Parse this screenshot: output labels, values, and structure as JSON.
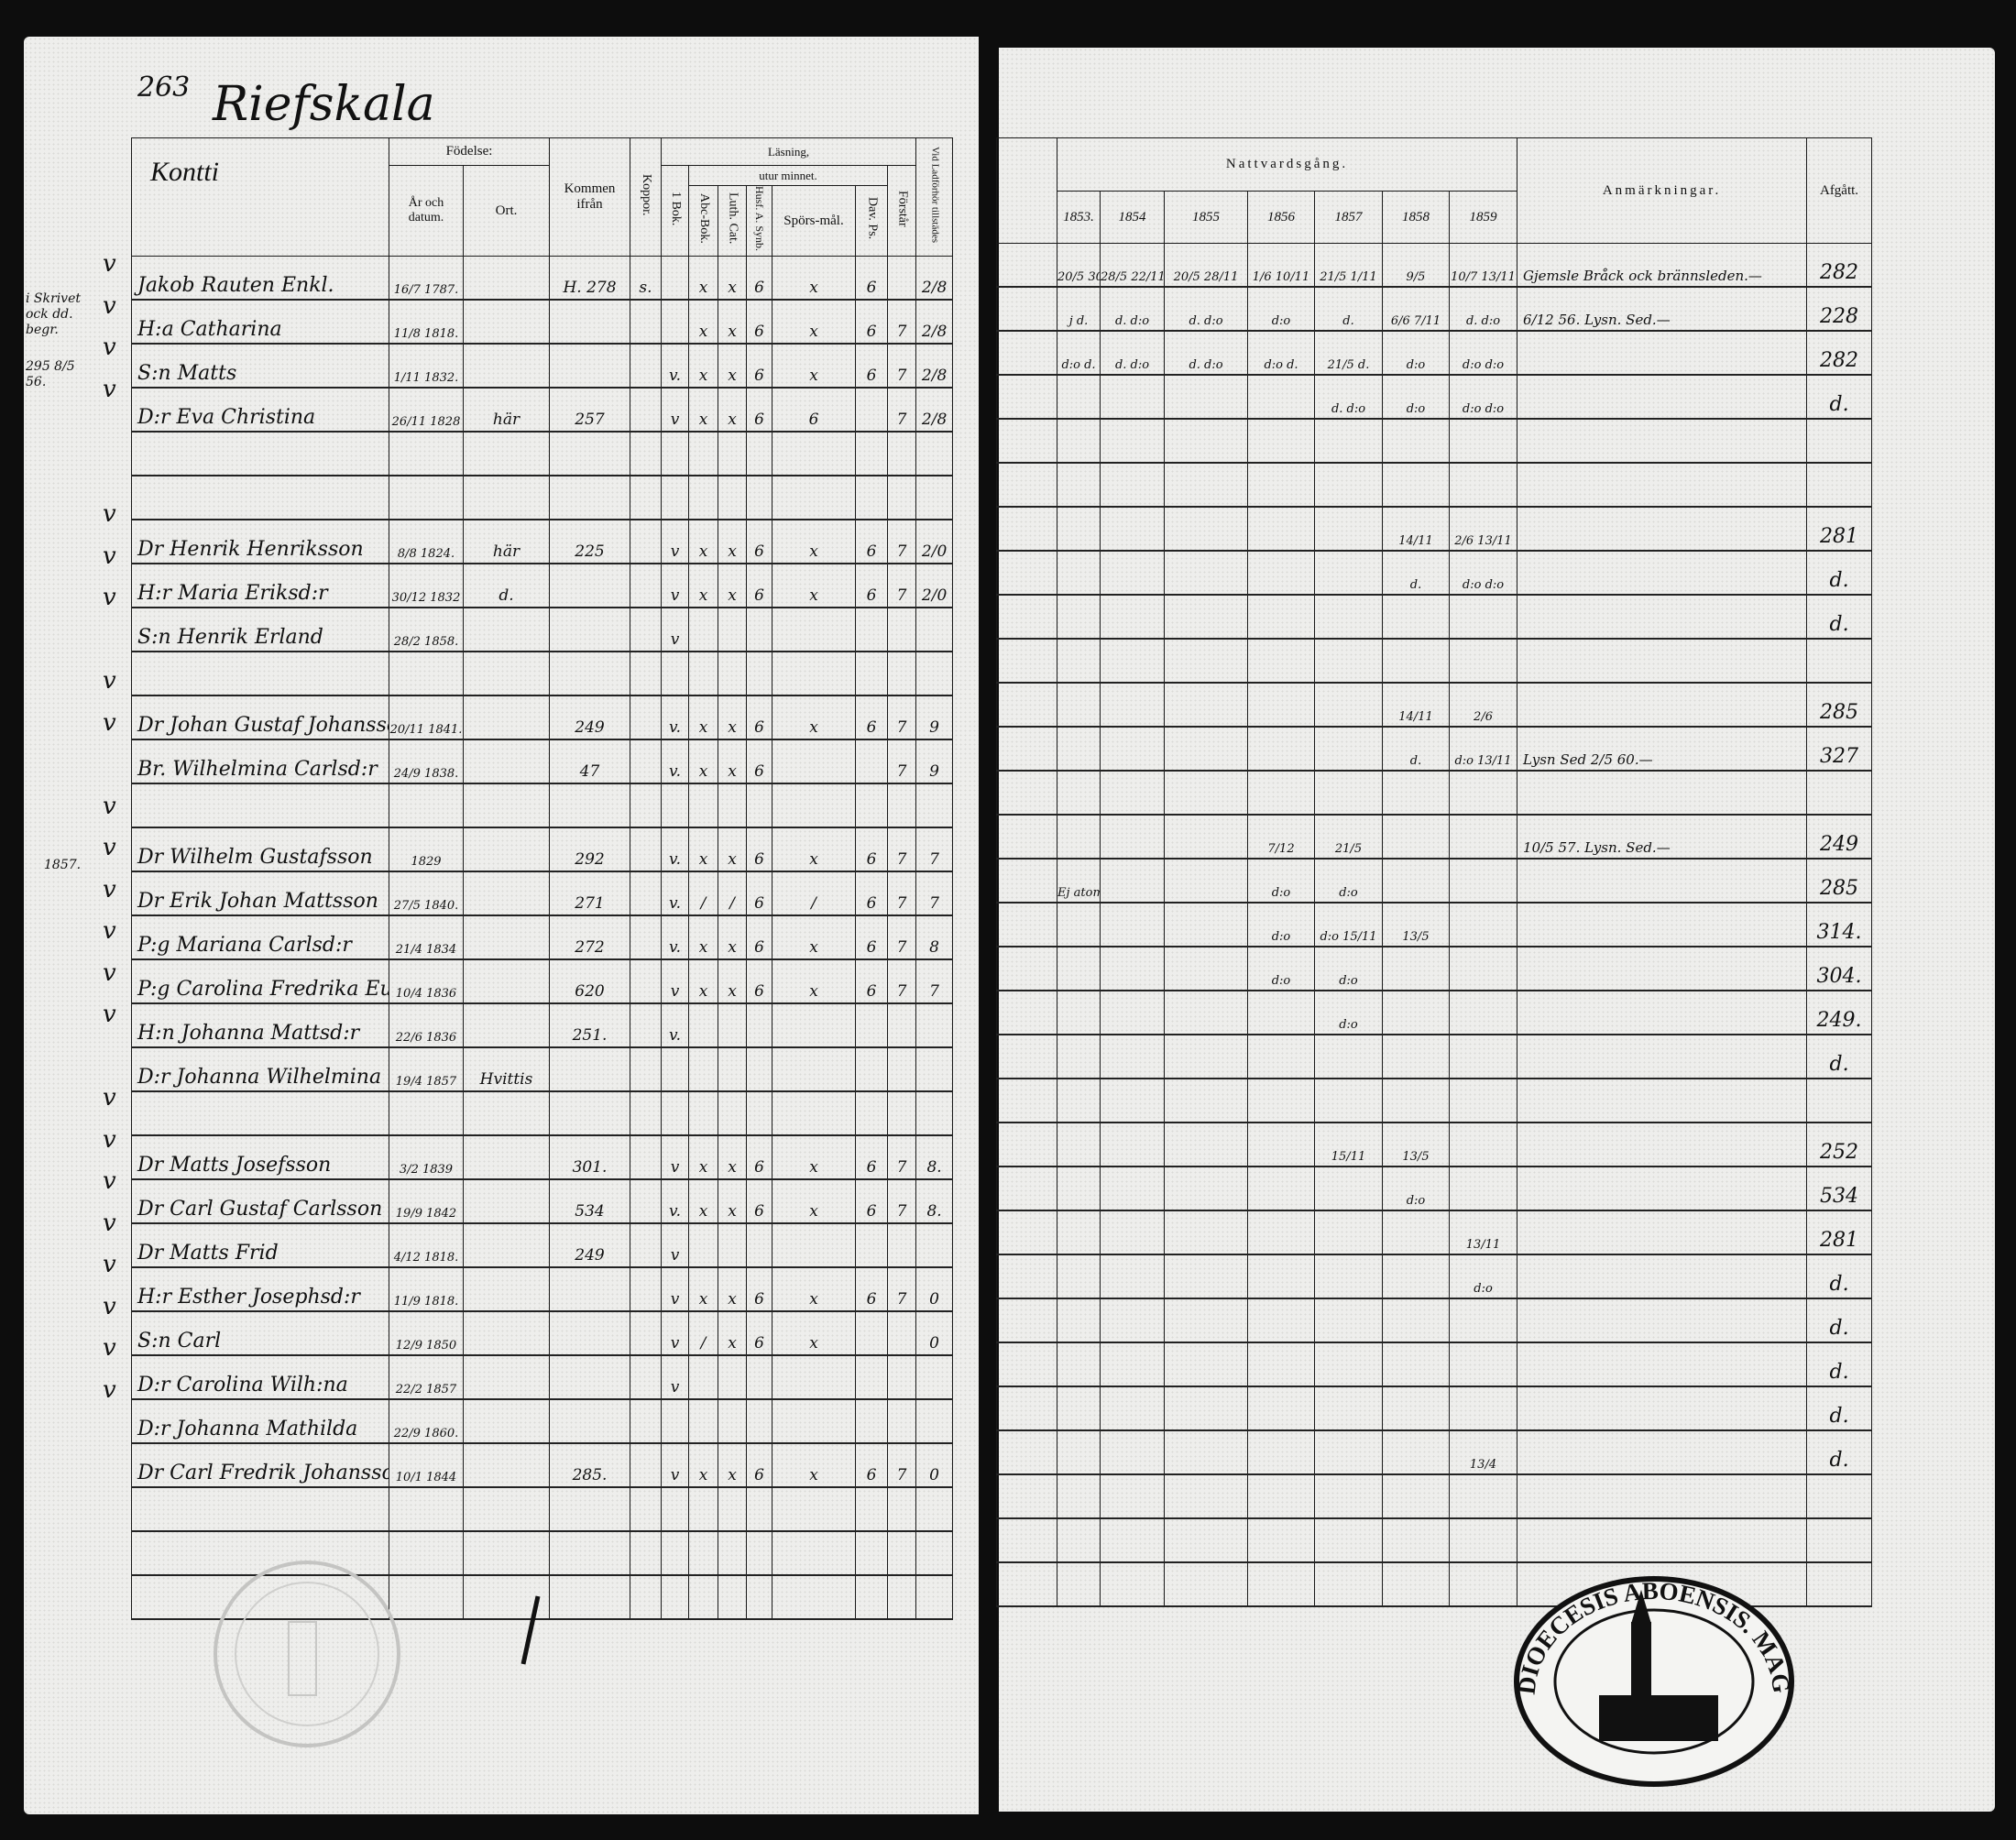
{
  "left_page": {
    "page_number": "263",
    "village_title": "Riefskala",
    "section_name": "Kontti",
    "margin_notes": [
      "i Skrivet ock dd. begr.",
      "295 8/5 56.",
      "1857."
    ],
    "headers": {
      "fodelse": "Födelse:",
      "ar_datum": "År och datum.",
      "ort": "Ort.",
      "kommen": "Kommen ifrån",
      "koppor": "Koppor.",
      "lasning": "Läsning,",
      "bok1": "1 Bok.",
      "utur_minnet": "utur minnet.",
      "abc": "Abc-Bok.",
      "luth": "Luth. Cat.",
      "husf": "Husf. A. Synb.",
      "spors": "Spörs-mål.",
      "dav": "Dav. Ps.",
      "forstar": "Förstår",
      "vid": "Vid Ladförhör tillstädes"
    }
  },
  "right_page": {
    "headers": {
      "nattvard": "Nattvardsgång.",
      "years": [
        "1853.",
        "1854",
        "1855",
        "1856",
        "1857",
        "1858",
        "1859"
      ],
      "anm": "Anmärkningar.",
      "afgatt": "Afgått."
    }
  },
  "rows": [
    {
      "left": [
        "Jakob Rauten Enkl.",
        "16/7 1787.",
        "",
        "H. 278",
        "s.",
        "",
        "x",
        "x",
        "6",
        "x",
        "6",
        "",
        "2/8"
      ],
      "right": [
        "",
        "20/5 30/10",
        "28/5 22/11",
        "20/5 28/11",
        "1/6 10/11",
        "21/5 1/11",
        "9/5",
        "10/7 13/11",
        "Gjemsle Bråck ock brännsleden.—",
        "282"
      ]
    },
    {
      "left": [
        "H:a Catharina",
        "11/8 1818.",
        "",
        "",
        "",
        "",
        "x",
        "x",
        "6",
        "x",
        "6",
        "7",
        "2/8"
      ],
      "right": [
        "",
        "j d.",
        "d. d:o",
        "d. d:o",
        "d:o",
        "d.",
        "6/6 7/11",
        "d. d:o",
        "6/12 56. Lysn. Sed.—",
        "228"
      ]
    },
    {
      "left": [
        "S:n Matts",
        "1/11 1832.",
        "",
        "",
        "",
        "v.",
        "x",
        "x",
        "6",
        "x",
        "6",
        "7",
        "2/8"
      ],
      "right": [
        "",
        "d:o d.",
        "d. d:o",
        "d. d:o",
        "d:o d.",
        "21/5 d.",
        "d:o",
        "d:o d:o",
        "",
        "282"
      ]
    },
    {
      "left": [
        "D:r Eva Christina",
        "26/11 1828",
        "här",
        "257",
        "",
        "v",
        "x",
        "x",
        "6",
        "6",
        "",
        "7",
        "2/8"
      ],
      "right": [
        "",
        "",
        "",
        "",
        "",
        "d. d:o",
        "d:o",
        "d:o d:o",
        "",
        "d."
      ]
    },
    {
      "left": [
        "",
        "",
        "",
        "",
        "",
        "",
        "",
        "",
        "",
        "",
        "",
        "",
        ""
      ],
      "right": [
        "",
        "",
        "",
        "",
        "",
        "",
        "",
        "",
        "",
        ""
      ]
    },
    {
      "left": [
        "",
        "",
        "",
        "",
        "",
        "",
        "",
        "",
        "",
        "",
        "",
        "",
        ""
      ],
      "right": [
        "",
        "",
        "",
        "",
        "",
        "",
        "",
        "",
        "",
        ""
      ]
    },
    {
      "left": [
        "Dr Henrik Henriksson",
        "8/8 1824.",
        "här",
        "225",
        "",
        "v",
        "x",
        "x",
        "6",
        "x",
        "6",
        "7",
        "2/0"
      ],
      "right": [
        "",
        "",
        "",
        "",
        "",
        "",
        "14/11",
        "2/6 13/11",
        "",
        "281"
      ]
    },
    {
      "left": [
        "H:r Maria Eriksd:r",
        "30/12 1832",
        "d.",
        "",
        "",
        "v",
        "x",
        "x",
        "6",
        "x",
        "6",
        "7",
        "2/0"
      ],
      "right": [
        "",
        "",
        "",
        "",
        "",
        "",
        "d.",
        "d:o d:o",
        "",
        "d."
      ]
    },
    {
      "left": [
        "S:n Henrik Erland",
        "28/2 1858.",
        "",
        "",
        "",
        "v",
        "",
        "",
        "",
        "",
        "",
        "",
        ""
      ],
      "right": [
        "",
        "",
        "",
        "",
        "",
        "",
        "",
        "",
        "",
        "d."
      ]
    },
    {
      "left": [
        "",
        "",
        "",
        "",
        "",
        "",
        "",
        "",
        "",
        "",
        "",
        "",
        ""
      ],
      "right": [
        "",
        "",
        "",
        "",
        "",
        "",
        "",
        "",
        "",
        ""
      ]
    },
    {
      "left": [
        "Dr Johan Gustaf Johansson",
        "20/11 1841.",
        "",
        "249",
        "",
        "v.",
        "x",
        "x",
        "6",
        "x",
        "6",
        "7",
        "9"
      ],
      "right": [
        "",
        "",
        "",
        "",
        "",
        "",
        "14/11",
        "2/6",
        "",
        "285"
      ]
    },
    {
      "left": [
        "Br. Wilhelmina Carlsd:r",
        "24/9 1838.",
        "",
        "47",
        "",
        "v.",
        "x",
        "x",
        "6",
        "",
        "",
        "7",
        "9"
      ],
      "right": [
        "",
        "",
        "",
        "",
        "",
        "",
        "d.",
        "d:o 13/11",
        "Lysn Sed 2/5 60.—",
        "327"
      ]
    },
    {
      "left": [
        "",
        "",
        "",
        "",
        "",
        "",
        "",
        "",
        "",
        "",
        "",
        "",
        ""
      ],
      "right": [
        "",
        "",
        "",
        "",
        "",
        "",
        "",
        "",
        "",
        ""
      ]
    },
    {
      "left": [
        "Dr Wilhelm Gustafsson",
        "1829",
        "",
        "292",
        "",
        "v.",
        "x",
        "x",
        "6",
        "x",
        "6",
        "7",
        "7"
      ],
      "right": [
        "",
        "",
        "",
        "",
        "7/12",
        "21/5",
        "",
        "",
        "10/5 57. Lysn. Sed.—",
        "249"
      ]
    },
    {
      "left": [
        "Dr Erik Johan Mattsson",
        "27/5 1840.",
        "",
        "271",
        "",
        "v.",
        "/",
        "/",
        "6",
        "/",
        "6",
        "7",
        "7"
      ],
      "right": [
        "",
        "Ej atom.—",
        "",
        "",
        "d:o",
        "d:o",
        "",
        "",
        "",
        "285"
      ]
    },
    {
      "left": [
        "P:g Mariana Carlsd:r",
        "21/4 1834",
        "",
        "272",
        "",
        "v.",
        "x",
        "x",
        "6",
        "x",
        "6",
        "7",
        "8"
      ],
      "right": [
        "",
        "",
        "",
        "",
        "d:o",
        "d:o 15/11",
        "13/5",
        "",
        "",
        "314."
      ]
    },
    {
      "left": [
        "P:g Carolina Fredrika Eurell",
        "10/4 1836",
        "",
        "620",
        "",
        "v",
        "x",
        "x",
        "6",
        "x",
        "6",
        "7",
        "7"
      ],
      "right": [
        "",
        "",
        "",
        "",
        "d:o",
        "d:o",
        "",
        "",
        "",
        "304."
      ]
    },
    {
      "left": [
        "H:n Johanna Mattsd:r",
        "22/6 1836",
        "",
        "251.",
        "",
        "v.",
        "",
        "",
        "",
        "",
        "",
        "",
        ""
      ],
      "right": [
        "",
        "",
        "",
        "",
        "",
        "d:o",
        "",
        "",
        "",
        "249."
      ]
    },
    {
      "left": [
        "D:r Johanna Wilhelmina",
        "19/4 1857",
        "Hvittis",
        "",
        "",
        "",
        "",
        "",
        "",
        "",
        "",
        "",
        ""
      ],
      "right": [
        "",
        "",
        "",
        "",
        "",
        "",
        "",
        "",
        "",
        "d."
      ]
    },
    {
      "left": [
        "",
        "",
        "",
        "",
        "",
        "",
        "",
        "",
        "",
        "",
        "",
        "",
        ""
      ],
      "right": [
        "",
        "",
        "",
        "",
        "",
        "",
        "",
        "",
        "",
        ""
      ]
    },
    {
      "left": [
        "Dr Matts Josefsson",
        "3/2 1839",
        "",
        "301.",
        "",
        "v",
        "x",
        "x",
        "6",
        "x",
        "6",
        "7",
        "8."
      ],
      "right": [
        "",
        "",
        "",
        "",
        "",
        "15/11",
        "13/5",
        "",
        "",
        "252"
      ]
    },
    {
      "left": [
        "Dr Carl Gustaf Carlsson",
        "19/9 1842",
        "",
        "534",
        "",
        "v.",
        "x",
        "x",
        "6",
        "x",
        "6",
        "7",
        "8."
      ],
      "right": [
        "",
        "",
        "",
        "",
        "",
        "",
        "d:o",
        "",
        "",
        "534"
      ]
    },
    {
      "left": [
        "Dr Matts Frid",
        "4/12 1818.",
        "",
        "249",
        "",
        "v",
        "",
        "",
        "",
        "",
        "",
        "",
        ""
      ],
      "right": [
        "",
        "",
        "",
        "",
        "",
        "",
        "",
        "13/11",
        "",
        "281"
      ]
    },
    {
      "left": [
        "H:r Esther Josephsd:r",
        "11/9 1818.",
        "",
        "",
        "",
        "v",
        "x",
        "x",
        "6",
        "x",
        "6",
        "7",
        "0"
      ],
      "right": [
        "",
        "",
        "",
        "",
        "",
        "",
        "",
        "d:o",
        "",
        "d."
      ]
    },
    {
      "left": [
        "S:n Carl",
        "12/9 1850",
        "",
        "",
        "",
        "v",
        "/",
        "x",
        "6",
        "x",
        "",
        "",
        "0"
      ],
      "right": [
        "",
        "",
        "",
        "",
        "",
        "",
        "",
        "",
        "",
        "d."
      ]
    },
    {
      "left": [
        "D:r Carolina Wilh:na",
        "22/2 1857",
        "",
        "",
        "",
        "v",
        "",
        "",
        "",
        "",
        "",
        "",
        ""
      ],
      "right": [
        "",
        "",
        "",
        "",
        "",
        "",
        "",
        "",
        "",
        "d."
      ]
    },
    {
      "left": [
        "D:r Johanna Mathilda",
        "22/9 1860.",
        "",
        "",
        "",
        "",
        "",
        "",
        "",
        "",
        "",
        "",
        ""
      ],
      "right": [
        "",
        "",
        "",
        "",
        "",
        "",
        "",
        "",
        "",
        "d."
      ]
    },
    {
      "left": [
        "Dr Carl Fredrik Johansson",
        "10/1 1844",
        "",
        "285.",
        "",
        "v",
        "x",
        "x",
        "6",
        "x",
        "6",
        "7",
        "0"
      ],
      "right": [
        "",
        "",
        "",
        "",
        "",
        "",
        "",
        "13/4",
        "",
        "d."
      ]
    },
    {
      "left": [
        "",
        "",
        "",
        "",
        "",
        "",
        "",
        "",
        "",
        "",
        "",
        "",
        ""
      ],
      "right": [
        "",
        "",
        "",
        "",
        "",
        "",
        "",
        "",
        "",
        ""
      ]
    },
    {
      "left": [
        "",
        "",
        "",
        "",
        "",
        "",
        "",
        "",
        "",
        "",
        "",
        "",
        ""
      ],
      "right": [
        "",
        "",
        "",
        "",
        "",
        "",
        "",
        "",
        "",
        ""
      ]
    },
    {
      "left": [
        "",
        "",
        "",
        "",
        "",
        "",
        "",
        "",
        "",
        "",
        "",
        "",
        ""
      ],
      "right": [
        "",
        "",
        "",
        "",
        "",
        "",
        "",
        "",
        "",
        ""
      ]
    }
  ],
  "stamps": {
    "right_stamp_text": "DIOECESIS ABOENSIS. MAGN. PRINC. FINL.",
    "left_stamp_text": "faded seal"
  },
  "colors": {
    "ink": "#111111",
    "paper": "#eeeeec",
    "background": "#0d0d0d"
  }
}
